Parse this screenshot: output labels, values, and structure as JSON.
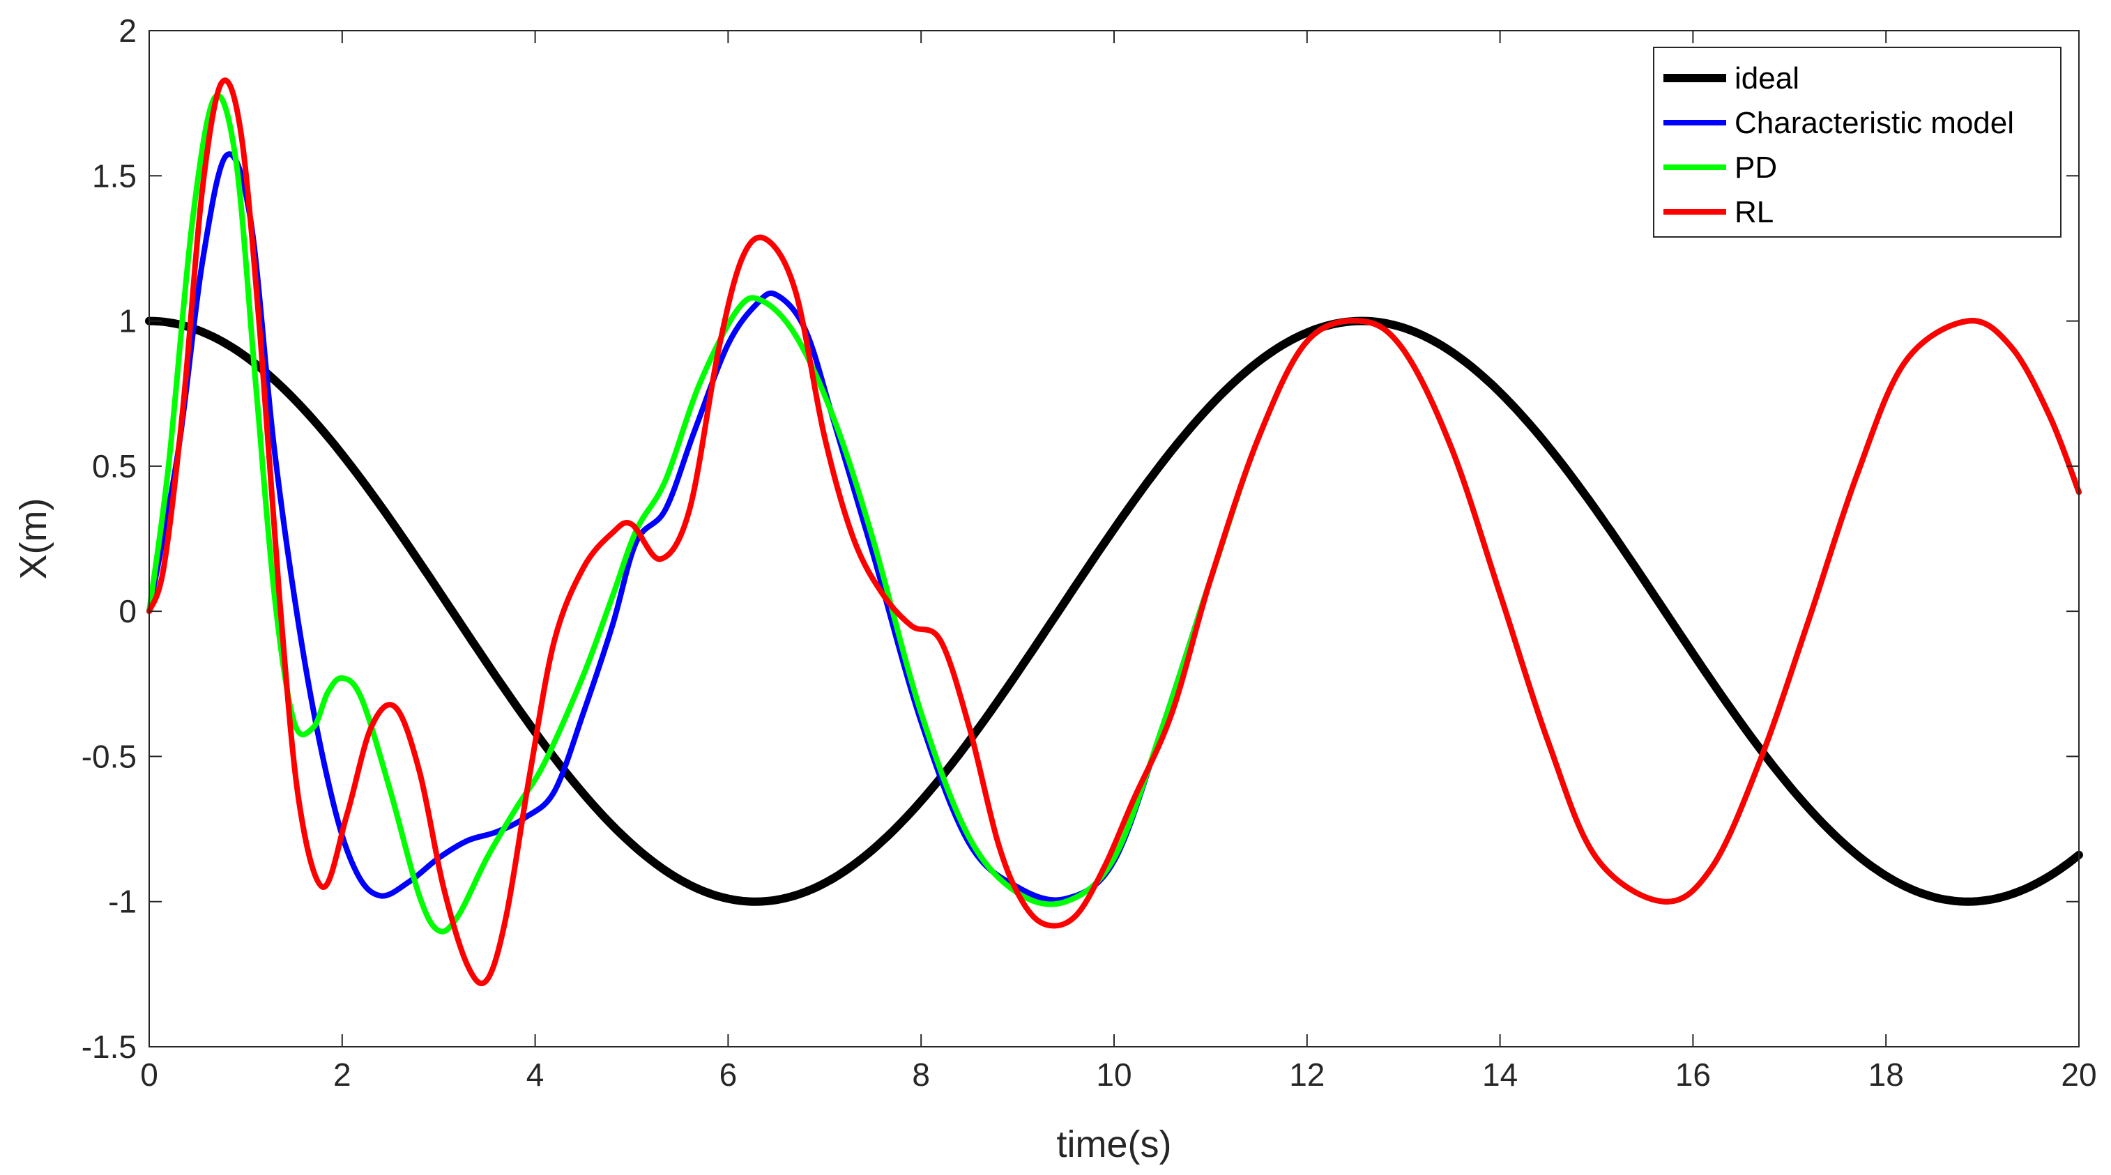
{
  "chart_data": {
    "type": "line",
    "title": "",
    "xlabel": "time(s)",
    "ylabel": "X(m)",
    "xlim": [
      0,
      20
    ],
    "ylim": [
      -1.5,
      2
    ],
    "xticks": [
      0,
      2,
      4,
      6,
      8,
      10,
      12,
      14,
      16,
      18,
      20
    ],
    "yticks": [
      -1.5,
      -1,
      -0.5,
      0,
      0.5,
      1,
      1.5,
      2
    ],
    "ytick_labels": [
      "-1.5",
      "-1",
      "-0.5",
      "0",
      "0.5",
      "1",
      "1.5",
      "2"
    ],
    "grid": false,
    "legend_position": "top-right",
    "series": [
      {
        "name": "ideal",
        "color": "#000000",
        "function": "cos(t/2)",
        "x": [
          0,
          1,
          2,
          3,
          4,
          5,
          6,
          7,
          8,
          9,
          10,
          11,
          12,
          13,
          14,
          15,
          16,
          17,
          18,
          19,
          20
        ],
        "values": [
          1.0,
          0.88,
          0.54,
          0.07,
          -0.42,
          -0.8,
          -0.99,
          -0.94,
          -0.65,
          -0.21,
          0.28,
          0.71,
          0.96,
          0.98,
          0.75,
          0.35,
          -0.15,
          -0.6,
          -0.91,
          -1.0,
          -0.84
        ]
      },
      {
        "name": "Characteristic model",
        "color": "#0000ff",
        "x": [
          0,
          0.3,
          0.55,
          0.8,
          1.05,
          1.3,
          1.6,
          1.9,
          2.15,
          2.4,
          2.7,
          3.0,
          3.3,
          3.6,
          3.9,
          4.2,
          4.5,
          4.8,
          5.05,
          5.35,
          5.65,
          6.0,
          6.3,
          6.5,
          6.8,
          7.1,
          7.5,
          8.0,
          8.5,
          9.0,
          9.5,
          10.0,
          10.5,
          11.0,
          11.5,
          12.0,
          12.56,
          13.0,
          13.5,
          14.0,
          14.5,
          15.0,
          15.7,
          16.2,
          16.7,
          17.2,
          17.7,
          18.2,
          18.85,
          19.3,
          19.7,
          20.0
        ],
        "values": [
          0.0,
          0.55,
          1.2,
          1.57,
          1.35,
          0.55,
          -0.15,
          -0.65,
          -0.9,
          -0.98,
          -0.93,
          -0.85,
          -0.79,
          -0.76,
          -0.71,
          -0.62,
          -0.35,
          -0.05,
          0.24,
          0.35,
          0.62,
          0.92,
          1.06,
          1.09,
          0.97,
          0.65,
          0.2,
          -0.38,
          -0.8,
          -0.95,
          -0.99,
          -0.86,
          -0.4,
          0.11,
          0.6,
          0.93,
          1.0,
          0.9,
          0.56,
          0.06,
          -0.45,
          -0.85,
          -1.0,
          -0.88,
          -0.51,
          -0.03,
          0.47,
          0.86,
          1.0,
          0.91,
          0.67,
          0.41
        ]
      },
      {
        "name": "PD",
        "color": "#00ff00",
        "x": [
          0,
          0.2,
          0.45,
          0.68,
          0.9,
          1.1,
          1.3,
          1.5,
          1.7,
          1.85,
          2.0,
          2.2,
          2.5,
          2.8,
          3.0,
          3.2,
          3.5,
          3.8,
          4.1,
          4.5,
          4.8,
          5.05,
          5.35,
          5.7,
          6.1,
          6.35,
          6.7,
          7.1,
          7.5,
          8.0,
          8.5,
          9.0,
          9.5,
          10.0,
          10.5,
          11.0,
          11.5,
          12.0,
          12.56,
          13.0,
          13.5,
          14.0,
          14.5,
          15.0,
          15.7,
          16.2,
          16.7,
          17.2,
          17.7,
          18.2,
          18.85,
          19.3,
          19.7,
          20.0
        ],
        "values": [
          0.0,
          0.5,
          1.35,
          1.77,
          1.55,
          0.8,
          0.05,
          -0.38,
          -0.4,
          -0.28,
          -0.23,
          -0.3,
          -0.62,
          -0.98,
          -1.1,
          -1.05,
          -0.85,
          -0.68,
          -0.52,
          -0.22,
          0.05,
          0.28,
          0.45,
          0.78,
          1.04,
          1.07,
          0.95,
          0.66,
          0.25,
          -0.35,
          -0.78,
          -0.97,
          -1.0,
          -0.85,
          -0.4,
          0.11,
          0.6,
          0.93,
          1.0,
          0.9,
          0.56,
          0.06,
          -0.45,
          -0.85,
          -1.0,
          -0.88,
          -0.51,
          -0.03,
          0.47,
          0.86,
          1.0,
          0.91,
          0.67,
          0.41
        ]
      },
      {
        "name": "RL",
        "color": "#ff0000",
        "x": [
          0,
          0.15,
          0.35,
          0.55,
          0.75,
          0.95,
          1.15,
          1.35,
          1.55,
          1.8,
          2.05,
          2.3,
          2.55,
          2.8,
          3.05,
          3.3,
          3.5,
          3.7,
          3.95,
          4.2,
          4.5,
          4.8,
          5.0,
          5.3,
          5.6,
          5.9,
          6.15,
          6.4,
          6.7,
          7.0,
          7.3,
          7.6,
          7.9,
          8.2,
          8.5,
          8.8,
          9.05,
          9.3,
          9.6,
          9.9,
          10.2,
          10.6,
          11.0,
          11.5,
          12.0,
          12.56,
          13.0,
          13.5,
          14.0,
          14.5,
          15.0,
          15.7,
          16.2,
          16.7,
          17.2,
          17.7,
          18.2,
          18.85,
          19.3,
          19.7,
          20.0
        ],
        "values": [
          0.0,
          0.15,
          0.7,
          1.45,
          1.82,
          1.65,
          0.95,
          0.05,
          -0.65,
          -0.95,
          -0.7,
          -0.4,
          -0.33,
          -0.55,
          -0.95,
          -1.22,
          -1.27,
          -1.05,
          -0.55,
          -0.1,
          0.15,
          0.27,
          0.3,
          0.18,
          0.35,
          0.9,
          1.22,
          1.28,
          1.1,
          0.6,
          0.25,
          0.06,
          -0.05,
          -0.1,
          -0.4,
          -0.8,
          -1.0,
          -1.08,
          -1.05,
          -0.88,
          -0.65,
          -0.35,
          0.11,
          0.6,
          0.93,
          1.0,
          0.9,
          0.56,
          0.06,
          -0.45,
          -0.85,
          -1.0,
          -0.88,
          -0.51,
          -0.03,
          0.47,
          0.86,
          1.0,
          0.91,
          0.67,
          0.41
        ]
      }
    ]
  }
}
